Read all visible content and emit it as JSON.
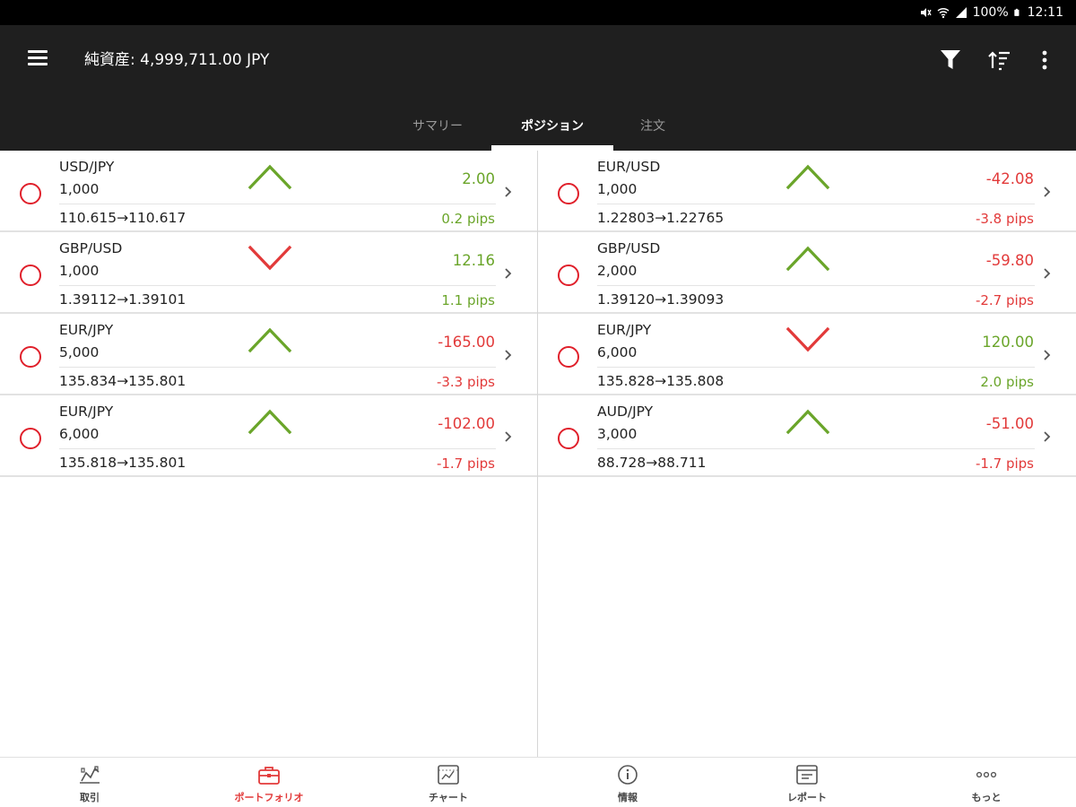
{
  "status_bar": {
    "battery_text": "100%",
    "time": "12:11",
    "icons": [
      "mute-icon",
      "wifi-icon",
      "signal-icon",
      "battery-icon"
    ]
  },
  "app_bar": {
    "title": "純資産: 4,999,711.00 JPY",
    "actions": [
      "filter-icon",
      "sort-icon",
      "more-vert-icon"
    ],
    "tabs": [
      {
        "label": "サマリー",
        "active": false
      },
      {
        "label": "ポジション",
        "active": true
      },
      {
        "label": "注文",
        "active": false
      }
    ]
  },
  "colors": {
    "positive": "#6aa52a",
    "negative": "#e23a3a",
    "header_bg": "#1f1f1f",
    "accent": "#e0202b"
  },
  "positions": {
    "left": [
      {
        "pair": "USD/JPY",
        "qty": "1,000",
        "rate": "110.615→110.617",
        "pl": "2.00",
        "pips": "0.2  pips",
        "direction": "up",
        "pl_sign": "positive"
      },
      {
        "pair": "GBP/USD",
        "qty": "1,000",
        "rate": "1.39112→1.39101",
        "pl": "12.16",
        "pips": "1.1  pips",
        "direction": "down",
        "pl_sign": "positive"
      },
      {
        "pair": "EUR/JPY",
        "qty": "5,000",
        "rate": "135.834→135.801",
        "pl": "-165.00",
        "pips": "-3.3  pips",
        "direction": "up",
        "pl_sign": "negative"
      },
      {
        "pair": "EUR/JPY",
        "qty": "6,000",
        "rate": "135.818→135.801",
        "pl": "-102.00",
        "pips": "-1.7  pips",
        "direction": "up",
        "pl_sign": "negative"
      }
    ],
    "right": [
      {
        "pair": "EUR/USD",
        "qty": "1,000",
        "rate": "1.22803→1.22765",
        "pl": "-42.08",
        "pips": "-3.8  pips",
        "direction": "up",
        "pl_sign": "negative"
      },
      {
        "pair": "GBP/USD",
        "qty": "2,000",
        "rate": "1.39120→1.39093",
        "pl": "-59.80",
        "pips": "-2.7  pips",
        "direction": "up",
        "pl_sign": "negative"
      },
      {
        "pair": "EUR/JPY",
        "qty": "6,000",
        "rate": "135.828→135.808",
        "pl": "120.00",
        "pips": "2.0  pips",
        "direction": "down",
        "pl_sign": "positive"
      },
      {
        "pair": "AUD/JPY",
        "qty": "3,000",
        "rate": "88.728→88.711",
        "pl": "-51.00",
        "pips": "-1.7  pips",
        "direction": "up",
        "pl_sign": "negative"
      }
    ]
  },
  "bottom_nav": [
    {
      "label": "取引",
      "icon": "trade-icon",
      "active": false
    },
    {
      "label": "ポートフォリオ",
      "icon": "portfolio-icon",
      "active": true
    },
    {
      "label": "チャート",
      "icon": "chart-icon",
      "active": false
    },
    {
      "label": "情報",
      "icon": "info-icon",
      "active": false
    },
    {
      "label": "レポート",
      "icon": "report-icon",
      "active": false
    },
    {
      "label": "もっと",
      "icon": "more-horiz-icon",
      "active": false
    }
  ]
}
